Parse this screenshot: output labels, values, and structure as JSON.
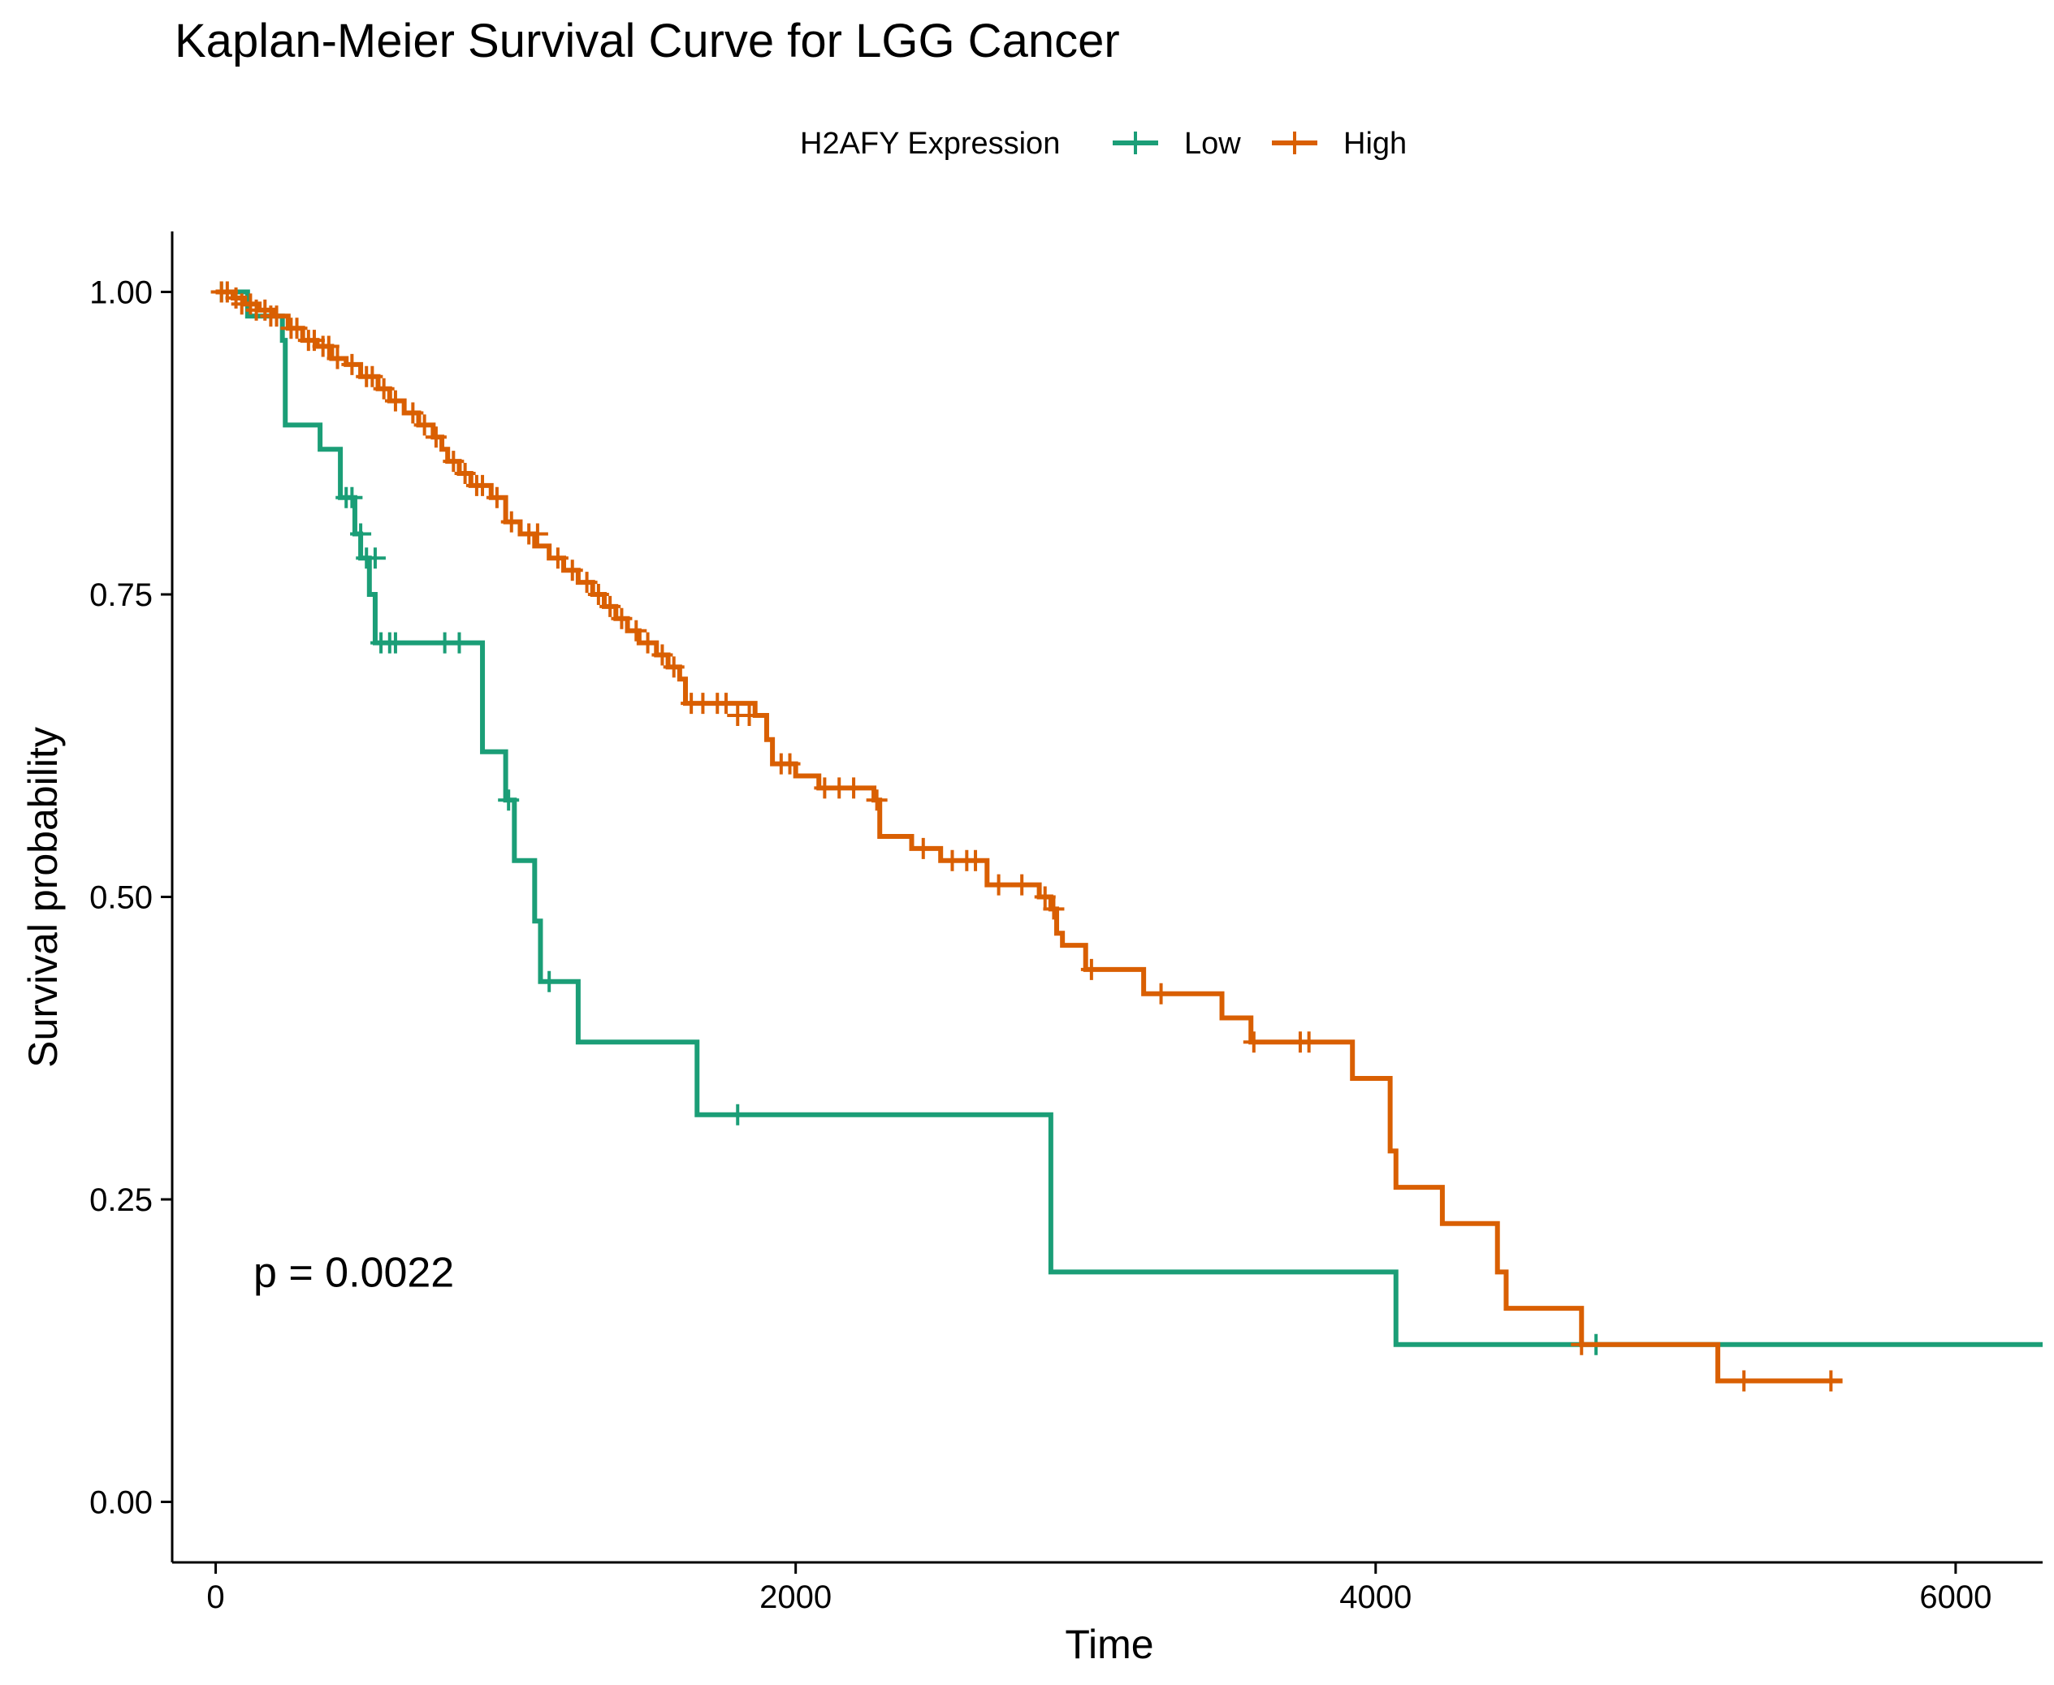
{
  "chart_data": {
    "type": "line",
    "title": "Kaplan-Meier Survival Curve for LGG Cancer",
    "xlabel": "Time",
    "ylabel": "Survival probability",
    "xlim": [
      -150,
      6300
    ],
    "ylim": [
      -0.05,
      1.05
    ],
    "x_ticks": [
      0,
      2000,
      4000,
      6000
    ],
    "x_tick_labels": [
      "0",
      "2000",
      "4000",
      "6000"
    ],
    "y_ticks": [
      0,
      0.25,
      0.5,
      0.75,
      1.0
    ],
    "y_tick_labels": [
      "0.00",
      "0.25",
      "0.50",
      "0.75",
      "1.00"
    ],
    "legend": {
      "title": "H2AFY Expression",
      "position": "top"
    },
    "annotation": {
      "text": "p = 0.0022",
      "x": 130,
      "y": 0.19
    },
    "grid": false,
    "series": [
      {
        "name": "Low",
        "color": "#1b9e77",
        "steps": [
          [
            0,
            1.0
          ],
          [
            110,
            0.98
          ],
          [
            230,
            0.96
          ],
          [
            240,
            0.89
          ],
          [
            360,
            0.87
          ],
          [
            430,
            0.83
          ],
          [
            480,
            0.8
          ],
          [
            500,
            0.78
          ],
          [
            530,
            0.75
          ],
          [
            550,
            0.71
          ],
          [
            920,
            0.62
          ],
          [
            1000,
            0.58
          ],
          [
            1030,
            0.53
          ],
          [
            1100,
            0.48
          ],
          [
            1120,
            0.43
          ],
          [
            1250,
            0.38
          ],
          [
            1660,
            0.32
          ],
          [
            2880,
            0.19
          ],
          [
            4070,
            0.13
          ],
          [
            6300,
            0.13
          ]
        ],
        "censor": [
          [
            20,
            1.0
          ],
          [
            450,
            0.83
          ],
          [
            470,
            0.83
          ],
          [
            500,
            0.8
          ],
          [
            520,
            0.78
          ],
          [
            550,
            0.78
          ],
          [
            570,
            0.71
          ],
          [
            600,
            0.71
          ],
          [
            620,
            0.71
          ],
          [
            790,
            0.71
          ],
          [
            840,
            0.71
          ],
          [
            1010,
            0.58
          ],
          [
            1150,
            0.43
          ],
          [
            1800,
            0.32
          ],
          [
            4760,
            0.13
          ]
        ]
      },
      {
        "name": "High",
        "color": "#d95f02",
        "steps": [
          [
            0,
            1.0
          ],
          [
            60,
            0.995
          ],
          [
            100,
            0.99
          ],
          [
            150,
            0.985
          ],
          [
            200,
            0.98
          ],
          [
            250,
            0.97
          ],
          [
            300,
            0.96
          ],
          [
            350,
            0.955
          ],
          [
            400,
            0.945
          ],
          [
            450,
            0.94
          ],
          [
            500,
            0.93
          ],
          [
            560,
            0.92
          ],
          [
            600,
            0.91
          ],
          [
            650,
            0.9
          ],
          [
            700,
            0.89
          ],
          [
            750,
            0.88
          ],
          [
            780,
            0.87
          ],
          [
            800,
            0.86
          ],
          [
            840,
            0.85
          ],
          [
            880,
            0.84
          ],
          [
            950,
            0.83
          ],
          [
            1000,
            0.81
          ],
          [
            1050,
            0.8
          ],
          [
            1100,
            0.79
          ],
          [
            1150,
            0.78
          ],
          [
            1200,
            0.77
          ],
          [
            1250,
            0.76
          ],
          [
            1300,
            0.75
          ],
          [
            1340,
            0.74
          ],
          [
            1380,
            0.73
          ],
          [
            1420,
            0.72
          ],
          [
            1460,
            0.71
          ],
          [
            1520,
            0.7
          ],
          [
            1560,
            0.69
          ],
          [
            1600,
            0.68
          ],
          [
            1620,
            0.66
          ],
          [
            1860,
            0.65
          ],
          [
            1900,
            0.63
          ],
          [
            1920,
            0.61
          ],
          [
            2000,
            0.6
          ],
          [
            2080,
            0.59
          ],
          [
            2270,
            0.58
          ],
          [
            2290,
            0.55
          ],
          [
            2400,
            0.54
          ],
          [
            2500,
            0.53
          ],
          [
            2660,
            0.51
          ],
          [
            2840,
            0.5
          ],
          [
            2880,
            0.49
          ],
          [
            2900,
            0.47
          ],
          [
            2920,
            0.46
          ],
          [
            3000,
            0.44
          ],
          [
            3200,
            0.42
          ],
          [
            3470,
            0.4
          ],
          [
            3570,
            0.38
          ],
          [
            3920,
            0.35
          ],
          [
            4050,
            0.29
          ],
          [
            4070,
            0.26
          ],
          [
            4230,
            0.23
          ],
          [
            4420,
            0.19
          ],
          [
            4450,
            0.16
          ],
          [
            4710,
            0.13
          ],
          [
            5180,
            0.1
          ],
          [
            5610,
            0.1
          ]
        ],
        "censor": [
          [
            20,
            1.0
          ],
          [
            40,
            1.0
          ],
          [
            70,
            0.995
          ],
          [
            90,
            0.99
          ],
          [
            120,
            0.99
          ],
          [
            140,
            0.985
          ],
          [
            170,
            0.985
          ],
          [
            190,
            0.98
          ],
          [
            210,
            0.98
          ],
          [
            260,
            0.97
          ],
          [
            280,
            0.97
          ],
          [
            320,
            0.96
          ],
          [
            340,
            0.96
          ],
          [
            370,
            0.955
          ],
          [
            390,
            0.955
          ],
          [
            420,
            0.945
          ],
          [
            470,
            0.94
          ],
          [
            520,
            0.93
          ],
          [
            540,
            0.93
          ],
          [
            580,
            0.92
          ],
          [
            620,
            0.91
          ],
          [
            680,
            0.9
          ],
          [
            720,
            0.89
          ],
          [
            760,
            0.88
          ],
          [
            820,
            0.86
          ],
          [
            860,
            0.85
          ],
          [
            900,
            0.84
          ],
          [
            920,
            0.84
          ],
          [
            970,
            0.83
          ],
          [
            1020,
            0.81
          ],
          [
            1080,
            0.8
          ],
          [
            1110,
            0.8
          ],
          [
            1180,
            0.78
          ],
          [
            1230,
            0.77
          ],
          [
            1280,
            0.76
          ],
          [
            1320,
            0.75
          ],
          [
            1360,
            0.74
          ],
          [
            1400,
            0.73
          ],
          [
            1450,
            0.72
          ],
          [
            1490,
            0.71
          ],
          [
            1540,
            0.7
          ],
          [
            1580,
            0.69
          ],
          [
            1640,
            0.66
          ],
          [
            1680,
            0.66
          ],
          [
            1730,
            0.66
          ],
          [
            1760,
            0.66
          ],
          [
            1800,
            0.65
          ],
          [
            1840,
            0.65
          ],
          [
            1950,
            0.61
          ],
          [
            1980,
            0.61
          ],
          [
            2100,
            0.59
          ],
          [
            2150,
            0.59
          ],
          [
            2200,
            0.59
          ],
          [
            2280,
            0.58
          ],
          [
            2440,
            0.54
          ],
          [
            2540,
            0.53
          ],
          [
            2590,
            0.53
          ],
          [
            2620,
            0.53
          ],
          [
            2700,
            0.51
          ],
          [
            2780,
            0.51
          ],
          [
            2860,
            0.5
          ],
          [
            2890,
            0.49
          ],
          [
            3020,
            0.44
          ],
          [
            3260,
            0.42
          ],
          [
            3580,
            0.38
          ],
          [
            3740,
            0.38
          ],
          [
            3770,
            0.38
          ],
          [
            4710,
            0.13
          ],
          [
            5270,
            0.1
          ],
          [
            5570,
            0.1
          ]
        ]
      }
    ]
  }
}
